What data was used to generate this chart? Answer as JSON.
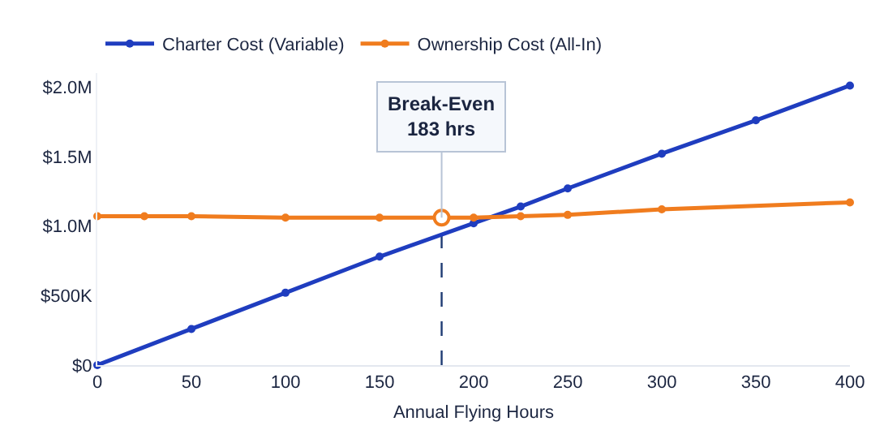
{
  "chart_data": {
    "type": "line",
    "xlabel": "Annual Flying Hours",
    "legend": "top left",
    "marker": "circle",
    "line_style": "solid",
    "grid": false,
    "xlim": [
      0,
      400
    ],
    "xticks": [
      0,
      50,
      100,
      150,
      200,
      250,
      300,
      350,
      400
    ],
    "ylim": [
      0,
      2100000
    ],
    "yticks": [
      {
        "value": 0,
        "label": "$0"
      },
      {
        "value": 500000,
        "label": "$500K"
      },
      {
        "value": 1000000,
        "label": "$1.0M"
      },
      {
        "value": 1500000,
        "label": "$1.5M"
      },
      {
        "value": 2000000,
        "label": "$2.0M"
      }
    ],
    "series": [
      {
        "name": "Charter Cost (Variable)",
        "color": "#1f3dbf",
        "x": [
          0,
          50,
          100,
          150,
          200,
          225,
          250,
          300,
          350,
          400
        ],
        "values": [
          0,
          260000,
          520000,
          780000,
          1020000,
          1140000,
          1270000,
          1520000,
          1760000,
          2010000
        ]
      },
      {
        "name": "Ownership Cost (All-In)",
        "color": "#f07c1e",
        "x": [
          0,
          25,
          50,
          100,
          150,
          200,
          225,
          250,
          300,
          400
        ],
        "values": [
          1070000,
          1070000,
          1070000,
          1060000,
          1060000,
          1060000,
          1070000,
          1080000,
          1120000,
          1170000
        ]
      },
      {
        "type": "scatter",
        "color": "#f07c1e",
        "x": [
          183
        ],
        "values": [
          1060000
        ]
      }
    ],
    "ref_lines": [
      {
        "axis": "x",
        "value": 183,
        "color": "#1f3b73",
        "line_style": "dashed"
      }
    ],
    "annotations": [
      {
        "text": "Break-Even\n183 hrs",
        "x": 183,
        "y": 1060000
      }
    ]
  }
}
